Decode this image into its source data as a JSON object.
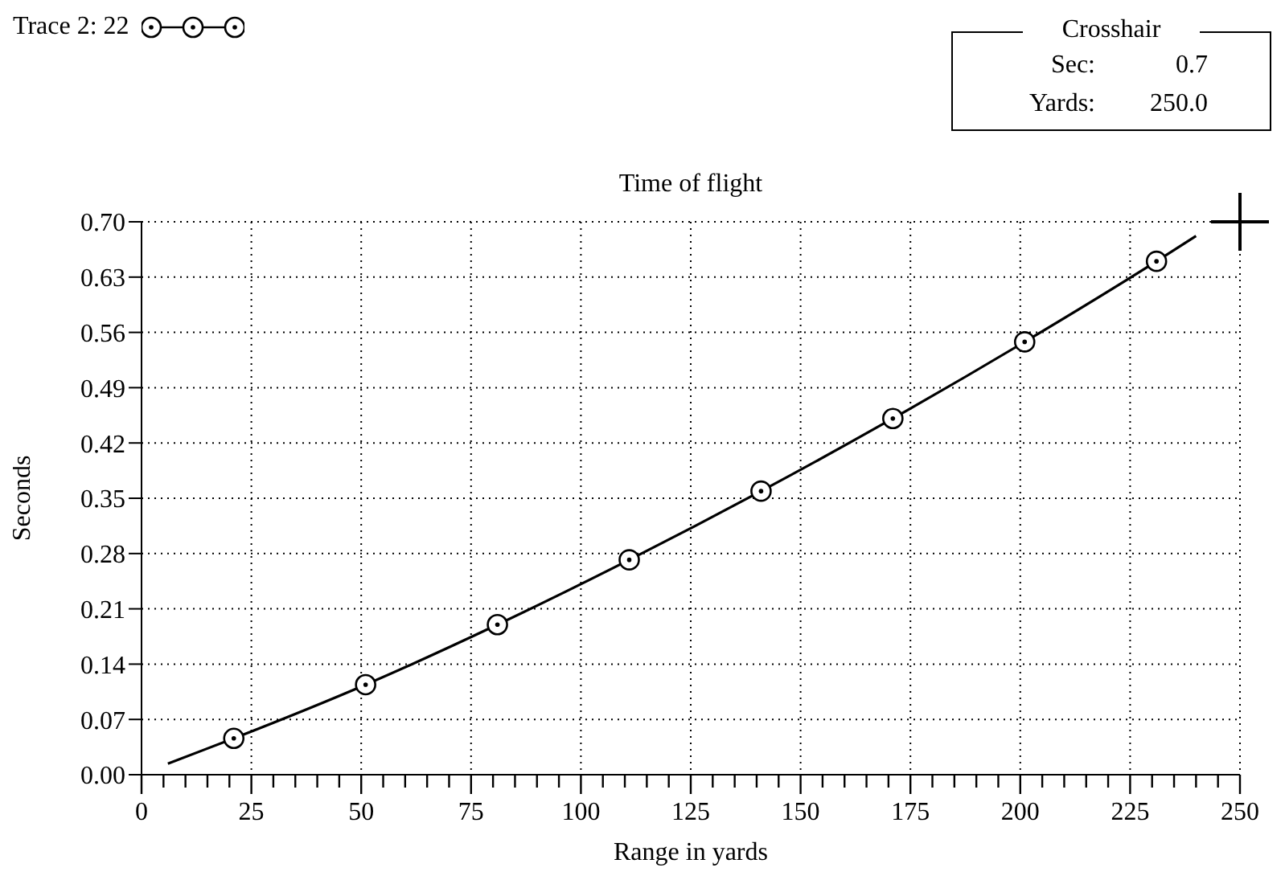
{
  "chart_data": {
    "type": "line",
    "title": "Time of flight",
    "xlabel": "Range in yards",
    "ylabel": "Seconds",
    "xlim": [
      0,
      250
    ],
    "xticks": [
      0,
      {
        "value": 5,
        "label": null
      },
      {
        "value": 10,
        "label": null
      },
      {
        "value": 15,
        "label": null
      },
      {
        "value": 20,
        "label": null
      },
      25,
      {
        "value": 30,
        "label": null
      },
      {
        "value": 35,
        "label": null
      },
      {
        "value": 40,
        "label": null
      },
      {
        "value": 45,
        "label": null
      },
      50,
      {
        "value": 55,
        "label": null
      },
      {
        "value": 60,
        "label": null
      },
      {
        "value": 65,
        "label": null
      },
      {
        "value": 70,
        "label": null
      },
      75,
      {
        "value": 80,
        "label": null
      },
      {
        "value": 85,
        "label": null
      },
      {
        "value": 90,
        "label": null
      },
      {
        "value": 95,
        "label": null
      },
      100,
      {
        "value": 105,
        "label": null
      },
      {
        "value": 110,
        "label": null
      },
      {
        "value": 115,
        "label": null
      },
      {
        "value": 120,
        "label": null
      },
      125,
      {
        "value": 130,
        "label": null
      },
      {
        "value": 135,
        "label": null
      },
      {
        "value": 140,
        "label": null
      },
      {
        "value": 145,
        "label": null
      },
      150,
      {
        "value": 155,
        "label": null
      },
      {
        "value": 160,
        "label": null
      },
      {
        "value": 165,
        "label": null
      },
      {
        "value": 170,
        "label": null
      },
      175,
      {
        "value": 180,
        "label": null
      },
      {
        "value": 185,
        "label": null
      },
      {
        "value": 190,
        "label": null
      },
      {
        "value": 195,
        "label": null
      },
      200,
      {
        "value": 205,
        "label": null
      },
      {
        "value": 210,
        "label": null
      },
      {
        "value": 215,
        "label": null
      },
      {
        "value": 220,
        "label": null
      },
      225,
      {
        "value": 230,
        "label": null
      },
      {
        "value": 235,
        "label": null
      },
      {
        "value": 240,
        "label": null
      },
      {
        "value": 245,
        "label": null
      },
      250
    ],
    "ylim": [
      0,
      0.7
    ],
    "yticks": [
      {
        "value": 0,
        "label": "0.00"
      },
      {
        "value": 0.07,
        "label": "0.07"
      },
      {
        "value": 0.14,
        "label": "0.14"
      },
      {
        "value": 0.21,
        "label": "0.21"
      },
      {
        "value": 0.28,
        "label": "0.28"
      },
      {
        "value": 0.35,
        "label": "0.35"
      },
      {
        "value": 0.42,
        "label": "0.42"
      },
      {
        "value": 0.49,
        "label": "0.49"
      },
      {
        "value": 0.56,
        "label": "0.56"
      },
      {
        "value": 0.63,
        "label": "0.63"
      },
      {
        "value": 0.7,
        "label": "0.70"
      }
    ],
    "grid": true,
    "legend": "top left",
    "line_style": "solid",
    "series": [
      {
        "color": "#000000",
        "marker": "none",
        "x": [
          6,
          21,
          51,
          81,
          111,
          141,
          171,
          201,
          231,
          240
        ],
        "values": [
          0.014,
          0.046,
          0.114,
          0.19,
          0.272,
          0.359,
          0.451,
          0.548,
          0.65,
          0.682
        ]
      },
      {
        "type": "scatter",
        "name": "Trace 2: 22",
        "color": "#000000",
        "marker": "circle",
        "x": [
          21,
          51,
          81,
          111,
          141,
          171,
          201,
          231
        ],
        "values": [
          0.046,
          0.114,
          0.19,
          0.272,
          0.359,
          0.451,
          0.548,
          0.65
        ]
      }
    ],
    "annotations": [
      "Crosshair",
      "Sec:",
      "0.7",
      "Yards:",
      "250.0"
    ]
  }
}
